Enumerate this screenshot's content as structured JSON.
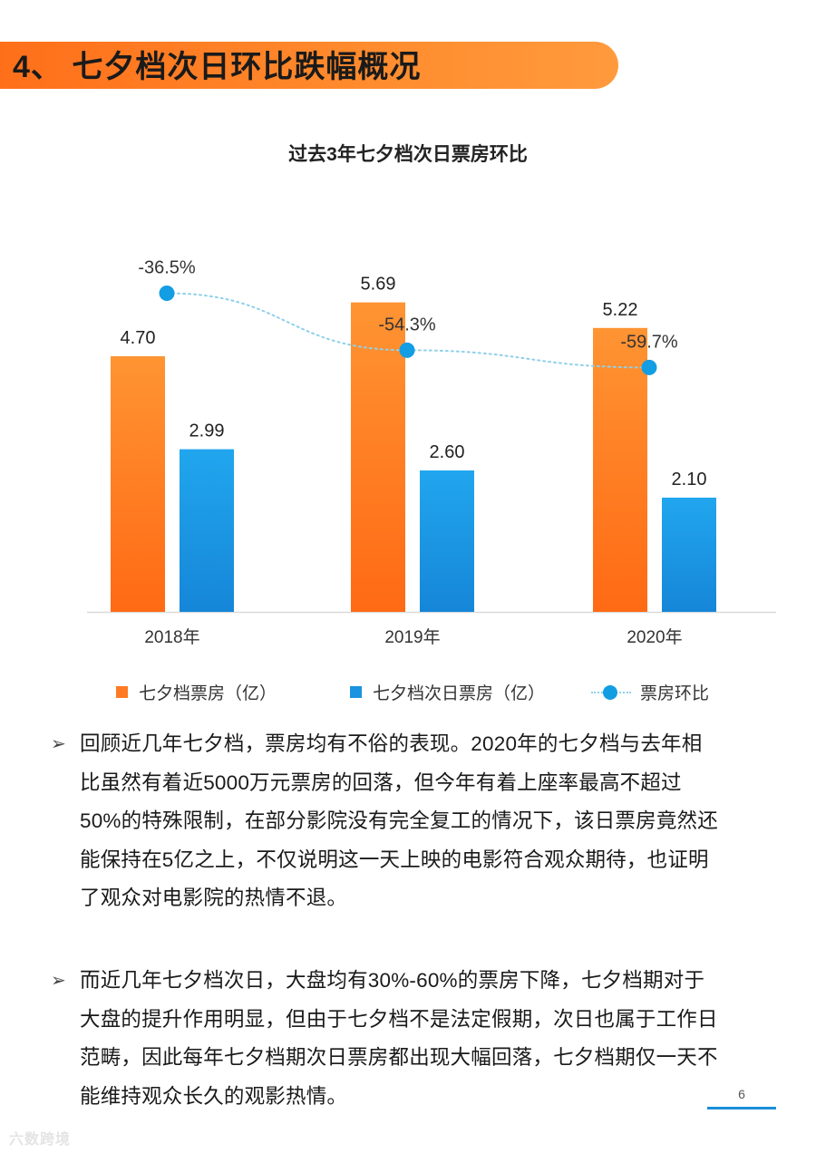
{
  "header": {
    "title": "4、 七夕档次日环比跌幅概况"
  },
  "colors": {
    "accent": "#ff7a22",
    "bar_orange": "#ff7a22",
    "bar_blue": "#1a93e0",
    "line_dot": "#139de3",
    "line_dotted": "#8fd0ea"
  },
  "chart_data": {
    "type": "bar",
    "title": "过去3年七夕档次日票房环比",
    "categories": [
      "2018年",
      "2019年",
      "2020年"
    ],
    "series": [
      {
        "name": "七夕档票房（亿）",
        "type": "bar",
        "values": [
          4.7,
          5.69,
          5.22
        ],
        "labels": [
          "4.70",
          "5.69",
          "5.22"
        ]
      },
      {
        "name": "七夕档次日票房（亿）",
        "type": "bar",
        "values": [
          2.99,
          2.6,
          2.1
        ],
        "labels": [
          "2.99",
          "2.60",
          "2.10"
        ]
      },
      {
        "name": "票房环比",
        "type": "line",
        "values": [
          -36.5,
          -54.3,
          -59.7
        ],
        "labels": [
          "-36.5%",
          "-54.3%",
          "-59.7%"
        ]
      }
    ],
    "ylim": [
      0,
      7
    ],
    "line_ylim": [
      -95,
      -10
    ],
    "grid": false,
    "legend_position": "bottom"
  },
  "paragraphs": [
    {
      "bullet": "➢",
      "lines": [
        "回顾近几年七夕档，票房均有不俗的表现。2020年的七夕档与去年相",
        "比虽然有着近5000万元票房的回落，但今年有着上座率最高不超过",
        "50%的特殊限制，在部分影院没有完全复工的情况下，该日票房竟然还",
        "能保持在5亿之上，不仅说明这一天上映的电影符合观众期待，也证明",
        "了观众对电影院的热情不退。"
      ]
    },
    {
      "bullet": "➢",
      "lines": [
        "而近几年七夕档次日，大盘均有30%-60%的票房下降，七夕档期对于",
        "大盘的提升作用明显，但由于七夕档不是法定假期，次日也属于工作日",
        "范畴，因此每年七夕档期次日票房都出现大幅回落，七夕档期仅一天不",
        "能维持观众长久的观影热情。"
      ]
    }
  ],
  "footer": {
    "page_number": "6",
    "watermark": "六数跨境"
  }
}
